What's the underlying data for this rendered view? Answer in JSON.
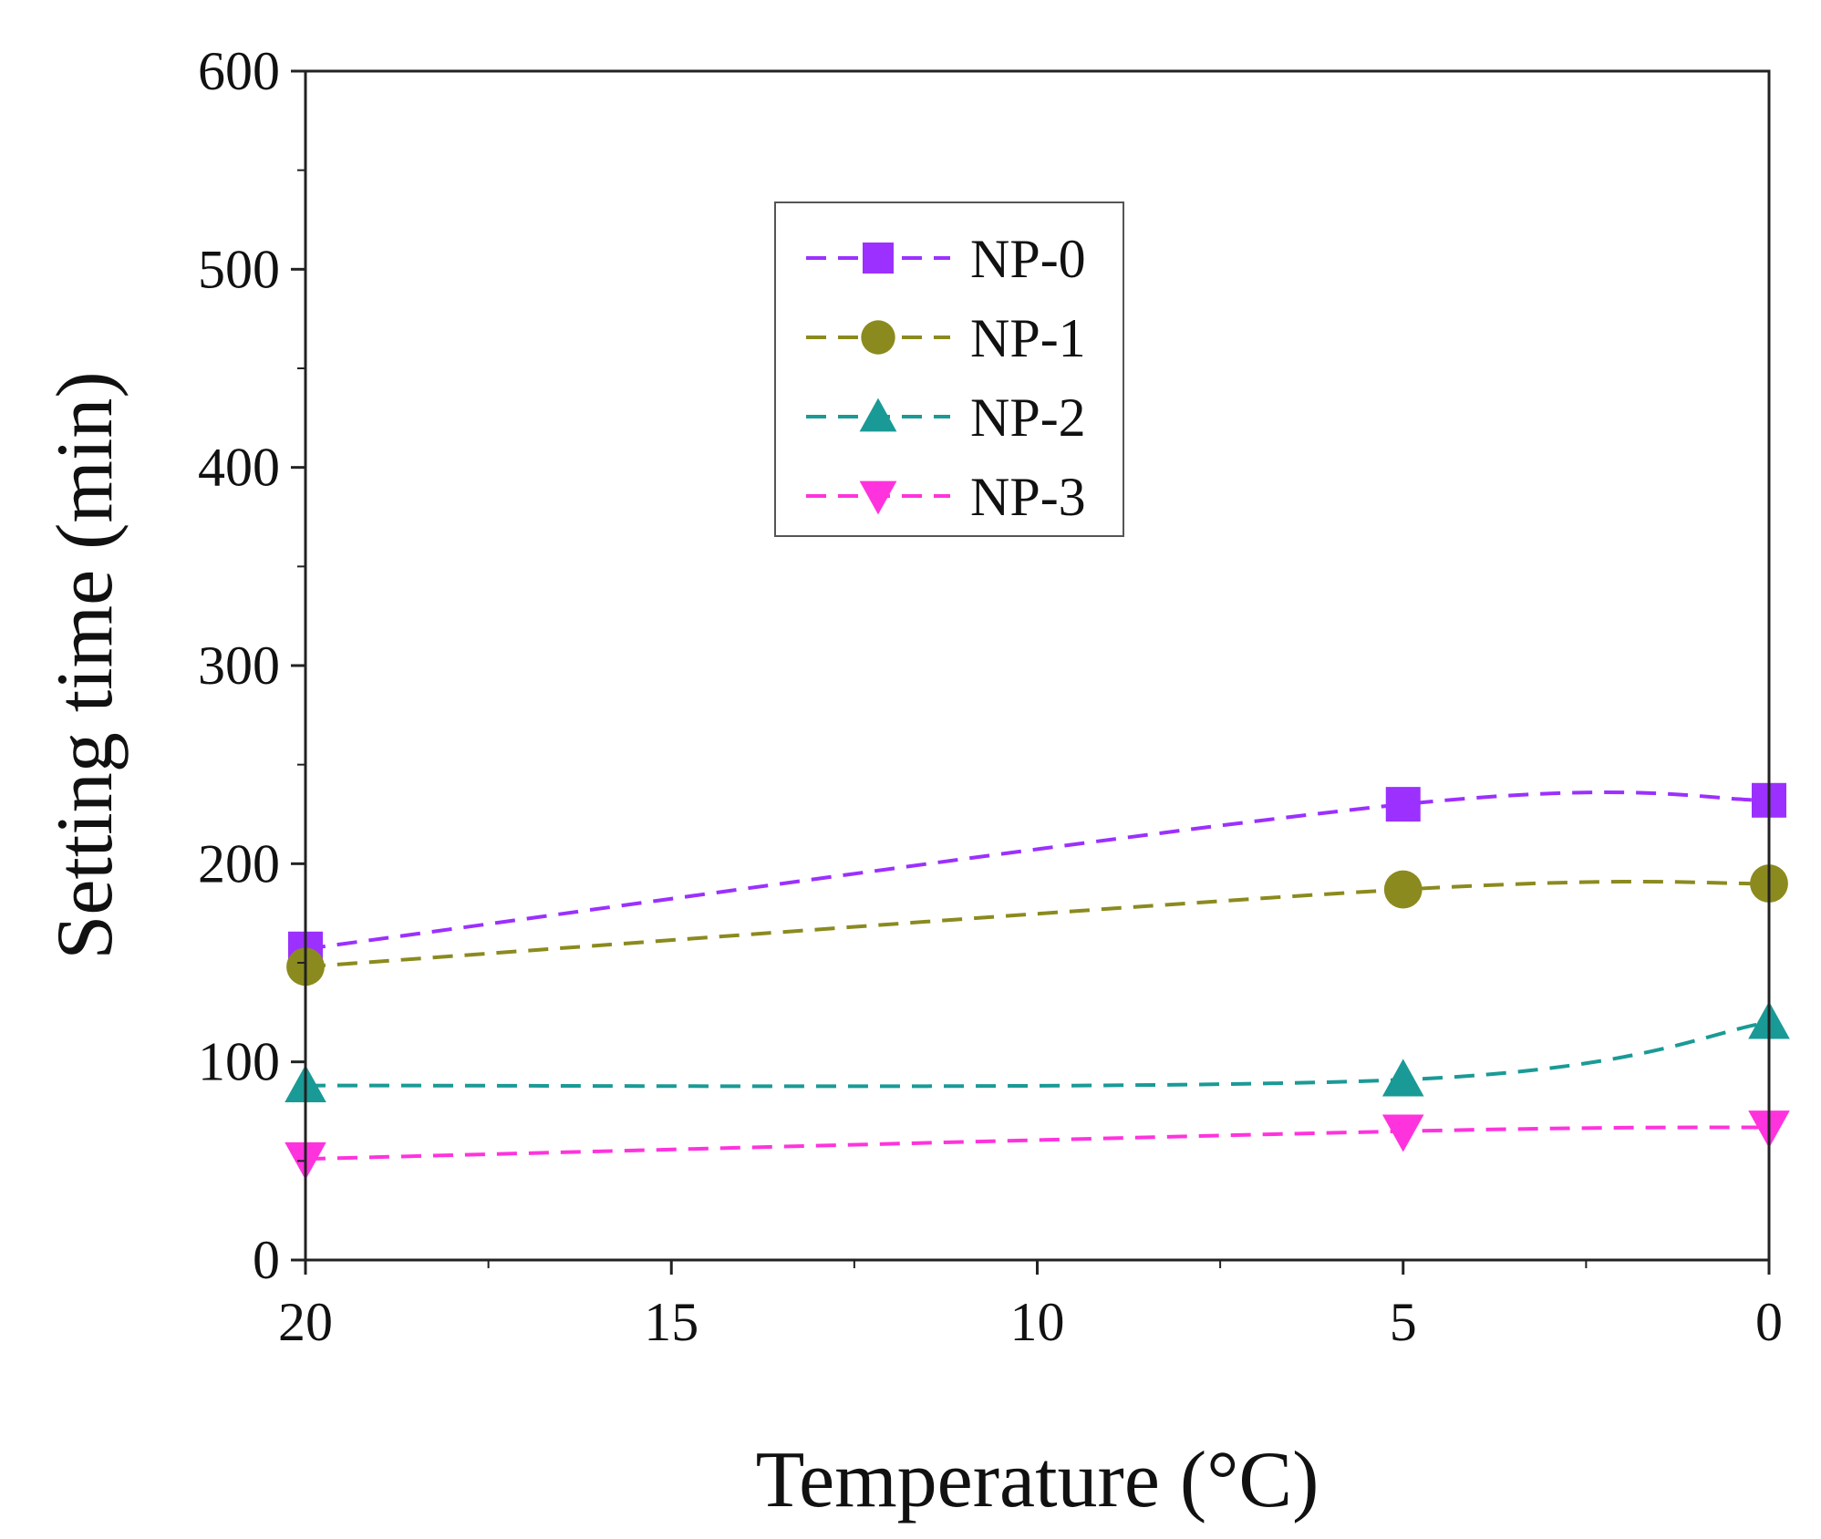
{
  "chart_data": {
    "type": "line",
    "xlabel": "Temperature (°C)",
    "ylabel": "Setting time (min)",
    "xlim": [
      20,
      0
    ],
    "ylim": [
      0,
      600
    ],
    "x_ticks": [
      20,
      15,
      10,
      5,
      0
    ],
    "y_ticks": [
      0,
      100,
      200,
      300,
      400,
      500,
      600
    ],
    "legend_position": "upper-center",
    "x": [
      20,
      5,
      0
    ],
    "series": [
      {
        "name": "NP-0",
        "color": "#9b30ff",
        "marker": "square",
        "values": [
          157,
          230,
          232
        ]
      },
      {
        "name": "NP-1",
        "color": "#8b8a1e",
        "marker": "circle",
        "values": [
          148,
          187,
          190
        ]
      },
      {
        "name": "NP-2",
        "color": "#1a9a96",
        "marker": "triangle-up",
        "values": [
          88,
          91,
          120
        ]
      },
      {
        "name": "NP-3",
        "color": "#ff33dd",
        "marker": "triangle-down",
        "values": [
          51,
          65,
          67
        ]
      }
    ]
  }
}
